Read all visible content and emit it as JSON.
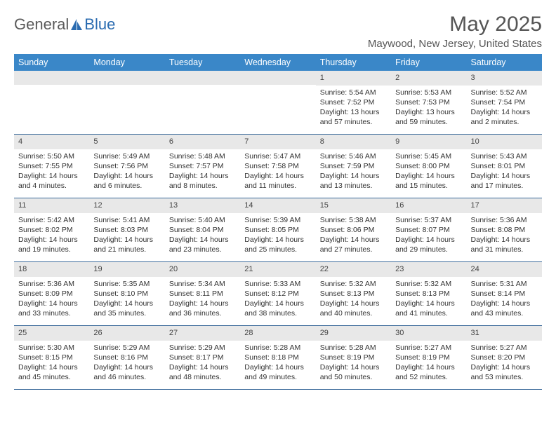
{
  "logo": {
    "text1": "General",
    "text2": "Blue"
  },
  "title": "May 2025",
  "location": "Maywood, New Jersey, United States",
  "colors": {
    "header_bg": "#3a87c8",
    "header_text": "#ffffff",
    "daynum_bg": "#e8e8e8",
    "border": "#3a6a9a",
    "text": "#333333",
    "logo_gray": "#5a5a5a",
    "logo_blue": "#2a6bb0"
  },
  "weekdays": [
    "Sunday",
    "Monday",
    "Tuesday",
    "Wednesday",
    "Thursday",
    "Friday",
    "Saturday"
  ],
  "weeks": [
    [
      {
        "day": "",
        "lines": []
      },
      {
        "day": "",
        "lines": []
      },
      {
        "day": "",
        "lines": []
      },
      {
        "day": "",
        "lines": []
      },
      {
        "day": "1",
        "lines": [
          "Sunrise: 5:54 AM",
          "Sunset: 7:52 PM",
          "Daylight: 13 hours and 57 minutes."
        ]
      },
      {
        "day": "2",
        "lines": [
          "Sunrise: 5:53 AM",
          "Sunset: 7:53 PM",
          "Daylight: 13 hours and 59 minutes."
        ]
      },
      {
        "day": "3",
        "lines": [
          "Sunrise: 5:52 AM",
          "Sunset: 7:54 PM",
          "Daylight: 14 hours and 2 minutes."
        ]
      }
    ],
    [
      {
        "day": "4",
        "lines": [
          "Sunrise: 5:50 AM",
          "Sunset: 7:55 PM",
          "Daylight: 14 hours and 4 minutes."
        ]
      },
      {
        "day": "5",
        "lines": [
          "Sunrise: 5:49 AM",
          "Sunset: 7:56 PM",
          "Daylight: 14 hours and 6 minutes."
        ]
      },
      {
        "day": "6",
        "lines": [
          "Sunrise: 5:48 AM",
          "Sunset: 7:57 PM",
          "Daylight: 14 hours and 8 minutes."
        ]
      },
      {
        "day": "7",
        "lines": [
          "Sunrise: 5:47 AM",
          "Sunset: 7:58 PM",
          "Daylight: 14 hours and 11 minutes."
        ]
      },
      {
        "day": "8",
        "lines": [
          "Sunrise: 5:46 AM",
          "Sunset: 7:59 PM",
          "Daylight: 14 hours and 13 minutes."
        ]
      },
      {
        "day": "9",
        "lines": [
          "Sunrise: 5:45 AM",
          "Sunset: 8:00 PM",
          "Daylight: 14 hours and 15 minutes."
        ]
      },
      {
        "day": "10",
        "lines": [
          "Sunrise: 5:43 AM",
          "Sunset: 8:01 PM",
          "Daylight: 14 hours and 17 minutes."
        ]
      }
    ],
    [
      {
        "day": "11",
        "lines": [
          "Sunrise: 5:42 AM",
          "Sunset: 8:02 PM",
          "Daylight: 14 hours and 19 minutes."
        ]
      },
      {
        "day": "12",
        "lines": [
          "Sunrise: 5:41 AM",
          "Sunset: 8:03 PM",
          "Daylight: 14 hours and 21 minutes."
        ]
      },
      {
        "day": "13",
        "lines": [
          "Sunrise: 5:40 AM",
          "Sunset: 8:04 PM",
          "Daylight: 14 hours and 23 minutes."
        ]
      },
      {
        "day": "14",
        "lines": [
          "Sunrise: 5:39 AM",
          "Sunset: 8:05 PM",
          "Daylight: 14 hours and 25 minutes."
        ]
      },
      {
        "day": "15",
        "lines": [
          "Sunrise: 5:38 AM",
          "Sunset: 8:06 PM",
          "Daylight: 14 hours and 27 minutes."
        ]
      },
      {
        "day": "16",
        "lines": [
          "Sunrise: 5:37 AM",
          "Sunset: 8:07 PM",
          "Daylight: 14 hours and 29 minutes."
        ]
      },
      {
        "day": "17",
        "lines": [
          "Sunrise: 5:36 AM",
          "Sunset: 8:08 PM",
          "Daylight: 14 hours and 31 minutes."
        ]
      }
    ],
    [
      {
        "day": "18",
        "lines": [
          "Sunrise: 5:36 AM",
          "Sunset: 8:09 PM",
          "Daylight: 14 hours and 33 minutes."
        ]
      },
      {
        "day": "19",
        "lines": [
          "Sunrise: 5:35 AM",
          "Sunset: 8:10 PM",
          "Daylight: 14 hours and 35 minutes."
        ]
      },
      {
        "day": "20",
        "lines": [
          "Sunrise: 5:34 AM",
          "Sunset: 8:11 PM",
          "Daylight: 14 hours and 36 minutes."
        ]
      },
      {
        "day": "21",
        "lines": [
          "Sunrise: 5:33 AM",
          "Sunset: 8:12 PM",
          "Daylight: 14 hours and 38 minutes."
        ]
      },
      {
        "day": "22",
        "lines": [
          "Sunrise: 5:32 AM",
          "Sunset: 8:13 PM",
          "Daylight: 14 hours and 40 minutes."
        ]
      },
      {
        "day": "23",
        "lines": [
          "Sunrise: 5:32 AM",
          "Sunset: 8:13 PM",
          "Daylight: 14 hours and 41 minutes."
        ]
      },
      {
        "day": "24",
        "lines": [
          "Sunrise: 5:31 AM",
          "Sunset: 8:14 PM",
          "Daylight: 14 hours and 43 minutes."
        ]
      }
    ],
    [
      {
        "day": "25",
        "lines": [
          "Sunrise: 5:30 AM",
          "Sunset: 8:15 PM",
          "Daylight: 14 hours and 45 minutes."
        ]
      },
      {
        "day": "26",
        "lines": [
          "Sunrise: 5:29 AM",
          "Sunset: 8:16 PM",
          "Daylight: 14 hours and 46 minutes."
        ]
      },
      {
        "day": "27",
        "lines": [
          "Sunrise: 5:29 AM",
          "Sunset: 8:17 PM",
          "Daylight: 14 hours and 48 minutes."
        ]
      },
      {
        "day": "28",
        "lines": [
          "Sunrise: 5:28 AM",
          "Sunset: 8:18 PM",
          "Daylight: 14 hours and 49 minutes."
        ]
      },
      {
        "day": "29",
        "lines": [
          "Sunrise: 5:28 AM",
          "Sunset: 8:19 PM",
          "Daylight: 14 hours and 50 minutes."
        ]
      },
      {
        "day": "30",
        "lines": [
          "Sunrise: 5:27 AM",
          "Sunset: 8:19 PM",
          "Daylight: 14 hours and 52 minutes."
        ]
      },
      {
        "day": "31",
        "lines": [
          "Sunrise: 5:27 AM",
          "Sunset: 8:20 PM",
          "Daylight: 14 hours and 53 minutes."
        ]
      }
    ]
  ]
}
